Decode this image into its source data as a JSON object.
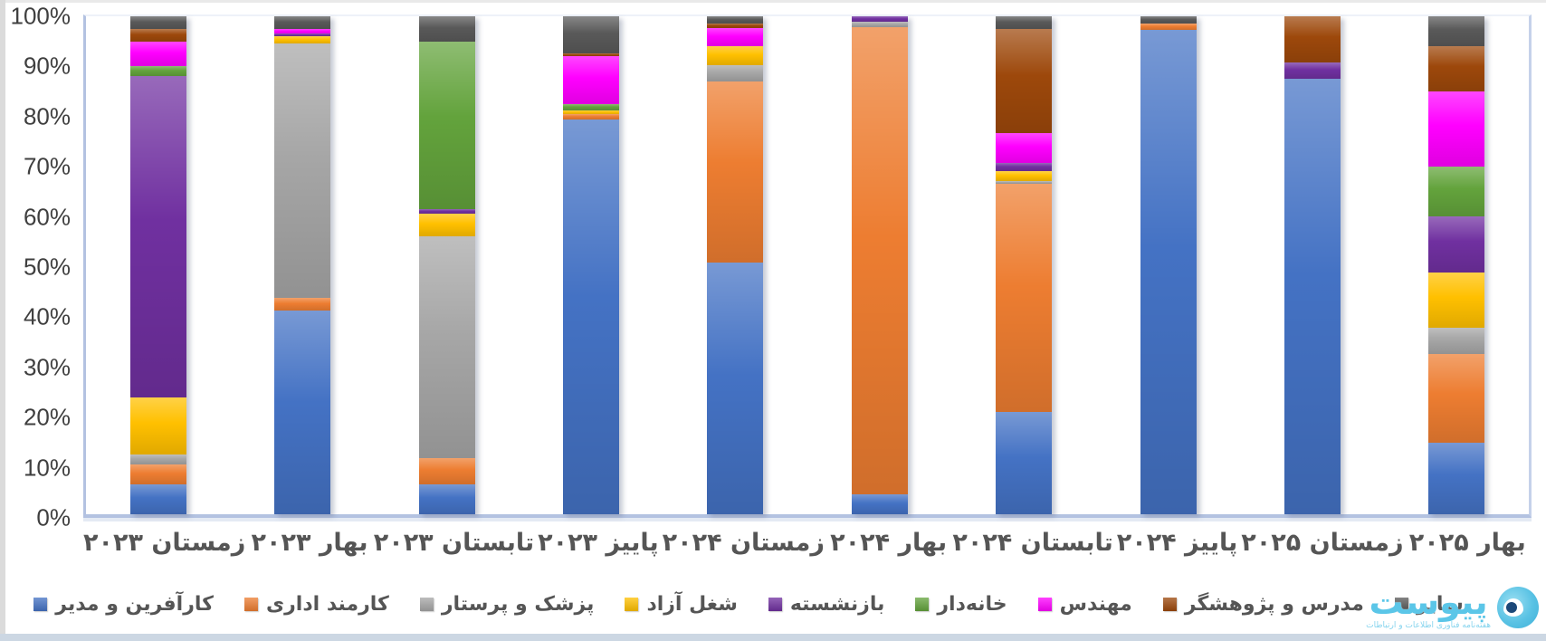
{
  "chart_data": {
    "type": "bar",
    "stacked": true,
    "percent": true,
    "title": "",
    "xlabel": "",
    "ylabel": "",
    "ylim": [
      0,
      100
    ],
    "gridlines": false,
    "legend_position": "bottom",
    "yaxis_ticks": [
      "100%",
      "90%",
      "80%",
      "70%",
      "60%",
      "50%",
      "40%",
      "30%",
      "20%",
      "10%",
      "0%"
    ],
    "categories": [
      "زمستان ۲۰۲۳",
      "بهار ۲۰۲۳",
      "تابستان ۲۰۲۳",
      "پاییز ۲۰۲۳",
      "زمستان ۲۰۲۴",
      "بهار ۲۰۲۴",
      "تابستان ۲۰۲۴",
      "پاییز ۲۰۲۴",
      "زمستان ۲۰۲۵",
      "بهار ۲۰۲۵"
    ],
    "series": [
      {
        "name": "کارآفرین و مدیر",
        "color": "#4472C4",
        "values": [
          6,
          41,
          6,
          79.3,
          50.5,
          4,
          20.5,
          97.2,
          87.5,
          14.3
        ]
      },
      {
        "name": "کارمند اداری",
        "color": "#ED7D31",
        "values": [
          4,
          2.5,
          5.3,
          1,
          36.5,
          93.9,
          45.8,
          1.3,
          0,
          17.8
        ]
      },
      {
        "name": "پزشک و پرستار",
        "color": "#A6A6A6",
        "values": [
          2,
          51,
          44.5,
          0,
          3.2,
          1.1,
          0.7,
          0,
          0,
          5.3
        ]
      },
      {
        "name": "شغل آزاد",
        "color": "#FFC000",
        "values": [
          11.5,
          1.5,
          4.5,
          0.8,
          3.8,
          0,
          2,
          0,
          0,
          11.1
        ]
      },
      {
        "name": "بازنشسته",
        "color": "#7030A0",
        "values": [
          64.5,
          0.6,
          1,
          0,
          0,
          1,
          1.5,
          0,
          3.2,
          11.4
        ]
      },
      {
        "name": "خانه‌دار",
        "color": "#63A33C",
        "values": [
          2,
          0,
          33.7,
          1.2,
          0,
          0,
          0,
          0,
          0,
          10
        ]
      },
      {
        "name": "مهندس",
        "color": "#FF00FF",
        "values": [
          5,
          0.9,
          0,
          9.7,
          3.7,
          0,
          6,
          0,
          0,
          15.1
        ]
      },
      {
        "name": "مدرس و پژوهشگر",
        "color": "#9D480B",
        "values": [
          2.5,
          0,
          0,
          0.5,
          0.8,
          0,
          21,
          0,
          9.3,
          9
        ]
      },
      {
        "name": "سایر",
        "color": "#595959",
        "values": [
          2.5,
          2.5,
          5,
          7.5,
          1.5,
          0,
          2.5,
          1.5,
          0,
          6
        ]
      }
    ]
  },
  "watermark": {
    "name": "پیوست",
    "tagline": "هفته‌نامه فناوری اطلاعات و ارتباطات"
  }
}
